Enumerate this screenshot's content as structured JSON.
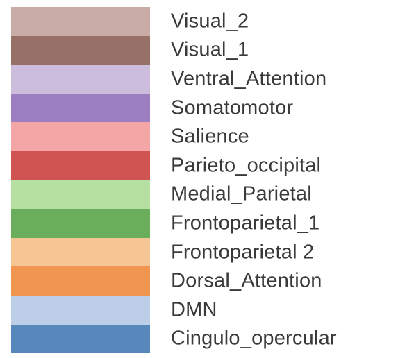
{
  "chart_data": {
    "type": "legend",
    "title": "",
    "entries": [
      {
        "label": "Visual_2",
        "color": "#c9aca5"
      },
      {
        "label": "Visual_1",
        "color": "#977167"
      },
      {
        "label": "Ventral_Attention",
        "color": "#cdbddc"
      },
      {
        "label": "Somatomotor",
        "color": "#9c7fc0"
      },
      {
        "label": "Salience",
        "color": "#f3a6a5"
      },
      {
        "label": "Parieto_occipital",
        "color": "#cf5452"
      },
      {
        "label": "Medial_Parietal",
        "color": "#b5e0a1"
      },
      {
        "label": "Frontoparietal_1",
        "color": "#6aad5b"
      },
      {
        "label": "Frontoparietal 2",
        "color": "#f6c594"
      },
      {
        "label": "Dorsal_Attention",
        "color": "#f09650"
      },
      {
        "label": "DMN",
        "color": "#bdcfe8"
      },
      {
        "label": "Cingulo_opercular",
        "color": "#5788bb"
      }
    ]
  }
}
